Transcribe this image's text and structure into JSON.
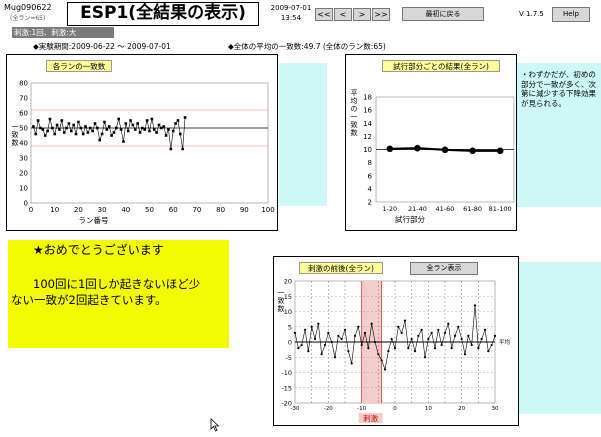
{
  "header": {
    "experiment_id": "Mug090622",
    "subtitle": "(全ラン=65)",
    "title": "ESP1(全結果の表示)",
    "date": "2009-07-01",
    "time": "13:54",
    "nav_first": "<<",
    "nav_prev": "<",
    "nav_next": ">",
    "nav_last": ">>",
    "back_label": "最初に戻る",
    "version": "V 1.7.5",
    "help_label": "Help"
  },
  "info": {
    "condition": "刺激:1回、刺激:大",
    "period": "◆実験期間:2009-06-22 ～ 2009-07-01",
    "average": "◆全体の平均の一致数:49.7 (全体のラン数:65)"
  },
  "comment": "・わずかだが、初めの部分で一致が多く、次第に減少する下降効果が見られる。",
  "message": {
    "line1": "★おめでとうございます",
    "line2": "100回に1回しか起きないほど少",
    "line3": "ない一致が2回起きています。"
  },
  "buttons": {
    "all_runs": "全ラン表示"
  },
  "colors": {
    "cyan_panel": "#cef8f8",
    "message_bg": "#f2fb01",
    "title_bg": "#ffff9a",
    "highlight": "#f5cccc"
  },
  "chart_data": [
    {
      "type": "line",
      "title": "各ランの一致数",
      "xlabel": "ラン番号",
      "ylabel": "一致数",
      "xlim": [
        0,
        100
      ],
      "ylim": [
        0,
        80
      ],
      "xticks": [
        0,
        10,
        20,
        30,
        40,
        50,
        60,
        70,
        80,
        90,
        100
      ],
      "yticks": [
        0,
        10,
        20,
        30,
        40,
        50,
        60,
        70,
        80
      ],
      "reference_lines": [
        50,
        62,
        38
      ],
      "series": [
        {
          "x": [
            1,
            2,
            3,
            4,
            5,
            6,
            7,
            8,
            9,
            10,
            11,
            12,
            13,
            14,
            15,
            16,
            17,
            18,
            19,
            20,
            21,
            22,
            23,
            24,
            25,
            26,
            27,
            28,
            29,
            30,
            31,
            32,
            33,
            34,
            35,
            36,
            37,
            38,
            39,
            40,
            41,
            42,
            43,
            44,
            45,
            46,
            47,
            48,
            49,
            50,
            51,
            52,
            53,
            54,
            55,
            56,
            57,
            58,
            59,
            60,
            61,
            62,
            63,
            64,
            65
          ],
          "y": [
            51,
            46,
            55,
            50,
            49,
            45,
            48,
            56,
            50,
            46,
            52,
            49,
            55,
            47,
            50,
            53,
            48,
            52,
            46,
            54,
            50,
            46,
            51,
            47,
            50,
            48,
            53,
            50,
            42,
            46,
            54,
            49,
            51,
            45,
            47,
            50,
            56,
            49,
            41,
            53,
            48,
            55,
            52,
            49,
            53,
            47,
            50,
            49,
            55,
            48,
            56,
            49,
            47,
            52,
            50,
            51,
            45,
            49,
            36,
            48,
            53,
            55,
            46,
            36,
            57
          ]
        }
      ]
    },
    {
      "type": "line",
      "title": "試行部分ごとの結果(全ラン)",
      "xlabel": "試行部分",
      "ylabel": "平均の一致数",
      "ylim": [
        2,
        18
      ],
      "yticks": [
        2,
        4,
        6,
        8,
        10,
        12,
        14,
        16,
        18
      ],
      "categories": [
        "1-20",
        "21-40",
        "41-60",
        "61-80",
        "81-100"
      ],
      "series": [
        {
          "values": [
            10.1,
            10.2,
            9.95,
            9.8,
            9.8
          ]
        }
      ]
    },
    {
      "type": "line",
      "title": "刺激の前後(全ラン)",
      "xlabel": "刺激",
      "ylabel": "一致数",
      "mean_label": "平均",
      "xlim": [
        -30,
        30
      ],
      "ylim": [
        -20,
        20
      ],
      "xticks": [
        -30,
        -20,
        -10,
        0,
        10,
        20,
        30
      ],
      "yticks": [
        -20,
        -15,
        -10,
        -5,
        0,
        5,
        10,
        15,
        20
      ],
      "stimulus_band": [
        -10,
        -4
      ],
      "reference_line": 0,
      "series": [
        {
          "x": [
            -30,
            -29,
            -28,
            -27,
            -26,
            -25,
            -24,
            -23,
            -22,
            -21,
            -20,
            -19,
            -18,
            -17,
            -16,
            -15,
            -14,
            -13,
            -12,
            -11,
            -10,
            -9,
            -8,
            -7,
            -6,
            -5,
            -4,
            -3,
            -2,
            -1,
            0,
            1,
            2,
            3,
            4,
            5,
            6,
            7,
            8,
            9,
            10,
            11,
            12,
            13,
            14,
            15,
            16,
            17,
            18,
            19,
            20,
            21,
            22,
            23,
            24,
            25,
            26,
            27,
            28,
            29,
            30
          ],
          "y": [
            3,
            -2,
            -1,
            4,
            -3,
            5,
            1,
            6,
            -4,
            -1,
            3,
            0,
            -5,
            2,
            1,
            4,
            -3,
            -7,
            2,
            5,
            -1,
            3,
            -2,
            6,
            0,
            -4,
            -6,
            -9,
            -3,
            1,
            -2,
            5,
            3,
            7,
            -2,
            1,
            -3,
            2,
            4,
            -5,
            1,
            3,
            -2,
            4,
            -1,
            3,
            6,
            -2,
            2,
            5,
            1,
            -4,
            2,
            -1,
            12,
            -2,
            1,
            4,
            -3,
            -1,
            2
          ]
        }
      ]
    }
  ]
}
